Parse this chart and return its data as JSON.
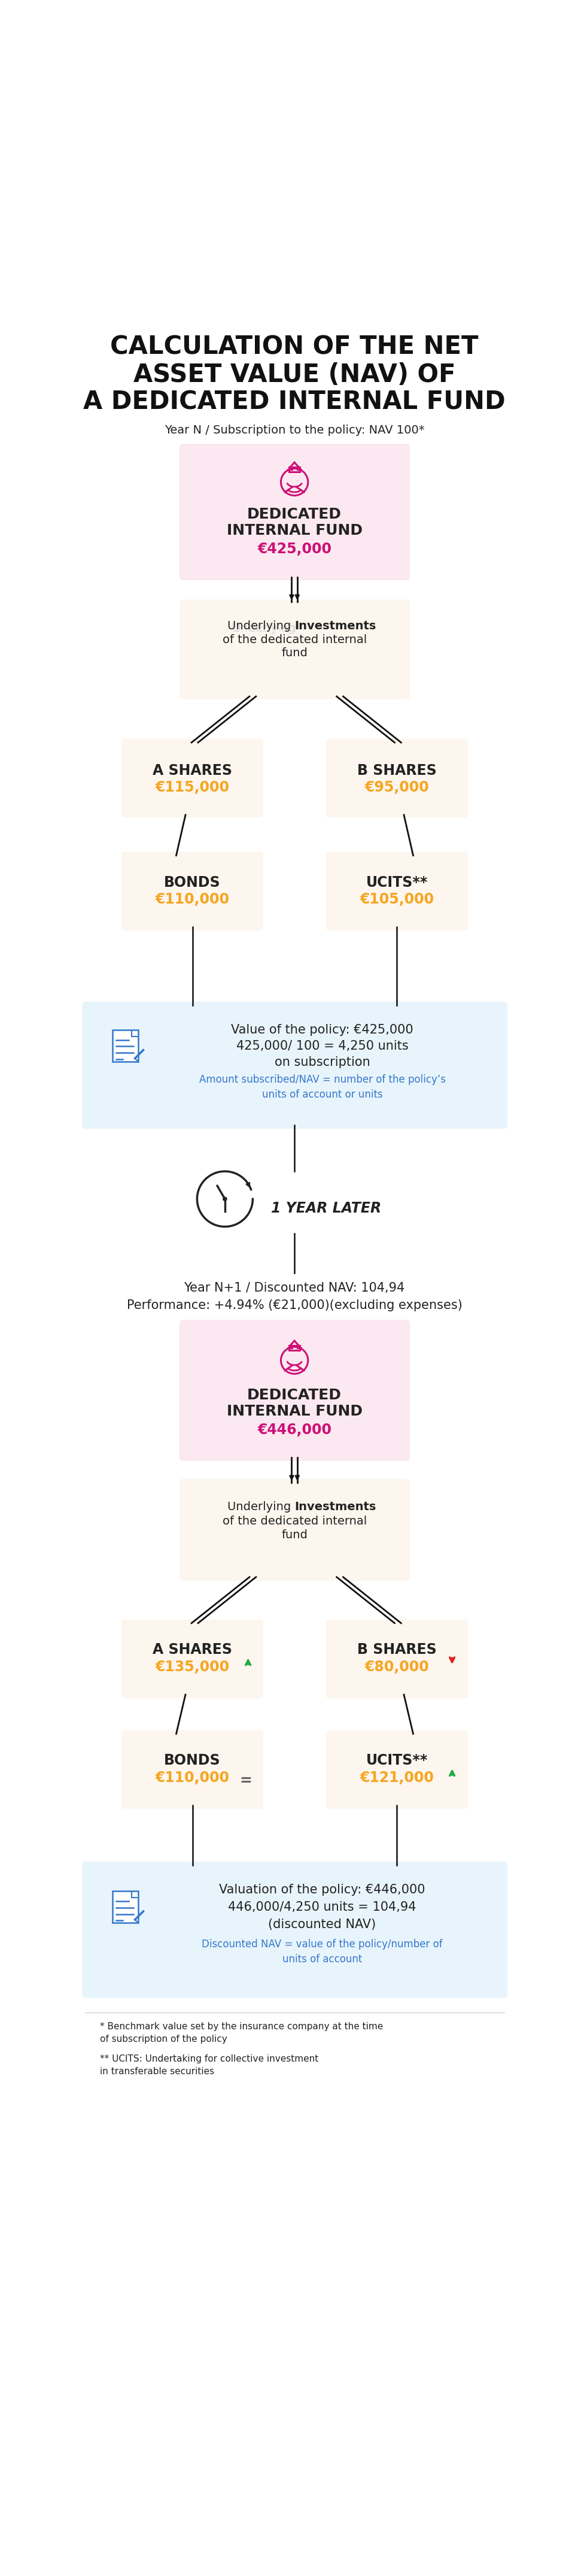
{
  "title_line1": "CALCULATION OF THE NET",
  "title_line2": "ASSET VALUE (NAV) OF",
  "title_line3": "A DEDICATED INTERNAL FUND",
  "subtitle1": "Year N / Subscription to the policy: NAV 100*",
  "fund1_label1": "DEDICATED",
  "fund1_label2": "INTERNAL FUND",
  "fund1_value": "€425,000",
  "ashares_label": "A SHARES",
  "ashares_value": "€115,000",
  "bshares_label": "B SHARES",
  "bshares_value": "€95,000",
  "bonds_label": "BONDS",
  "bonds_value": "€110,000",
  "ucits_label": "UCITS**",
  "ucits_value": "€105,000",
  "valuation_text1": "Value of the policy: €425,000",
  "valuation_text2": "425,000/ 100 = 4,250 units",
  "valuation_text3": "on subscription",
  "valuation_note": "Amount subscribed/NAV = number of the policy’s\nunits of account or units",
  "year_later": "1 YEAR LATER",
  "subtitle2": "Year N+1 / Discounted NAV: 104,94",
  "subtitle2b": "Performance: +4.94% (€21,000)(excluding expenses)",
  "fund2_label1": "DEDICATED",
  "fund2_label2": "INTERNAL FUND",
  "fund2_value": "€446,000",
  "ashares2_label": "A SHARES",
  "ashares2_value": "€135,000",
  "bshares2_label": "B SHARES",
  "bshares2_value": "€80,000",
  "bonds2_label": "BONDS",
  "bonds2_value": "€110,000",
  "ucits2_label": "UCITS**",
  "ucits2_value": "€121,000",
  "valuation2_text1": "Valuation of the policy: €446,000",
  "valuation2_text2": "446,000/4,250 units = 104,94",
  "valuation2_text3": "(discounted NAV)",
  "valuation2_note": "Discounted NAV = value of the policy/number of\nunits of account",
  "footnote1": "* Benchmark value set by the insurance company at the time",
  "footnote2": "of subscription of the policy",
  "footnote3": "** UCITS: Undertaking for collective investment",
  "footnote4": "in transferable securities",
  "bg_color": "#ffffff",
  "pink_bg": "#fce8f0",
  "cream_bg": "#fdf6ee",
  "light_blue_bg": "#e8f4fb",
  "pink_icon": "#cc1177",
  "orange_text": "#f5a623",
  "dark_text": "#222222",
  "blue_note": "#3377cc",
  "blue_doc": "#3377cc",
  "arrow_color": "#111111",
  "title_color": "#111111",
  "green_arrow": "#22aa44",
  "red_arrow": "#dd2222"
}
